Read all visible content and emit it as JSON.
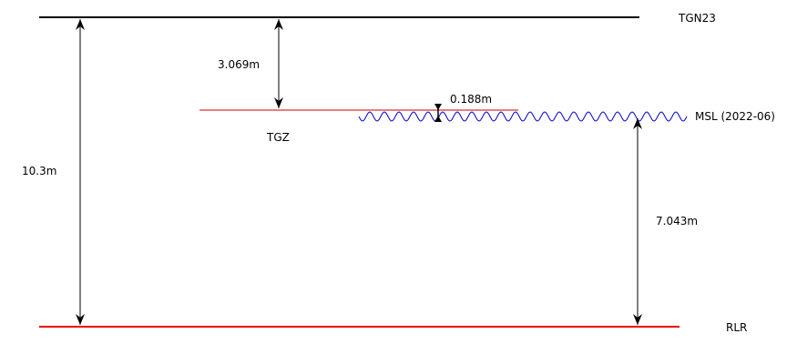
{
  "levels": {
    "tgn23": {
      "label": "TGN23",
      "color": "#000000"
    },
    "tgz": {
      "label": "TGZ",
      "color": "#cc0000"
    },
    "msl": {
      "label": "MSL (2022-06)",
      "color": "#0000cc"
    },
    "rlr": {
      "label": "RLR",
      "color": "#ee0000"
    }
  },
  "distances": {
    "tgn23_to_rlr": "10.3m",
    "tgn23_to_tgz": "3.069m",
    "tgz_to_msl": "0.188m",
    "msl_to_rlr": "7.043m"
  },
  "dimension_line_color": "#000000"
}
